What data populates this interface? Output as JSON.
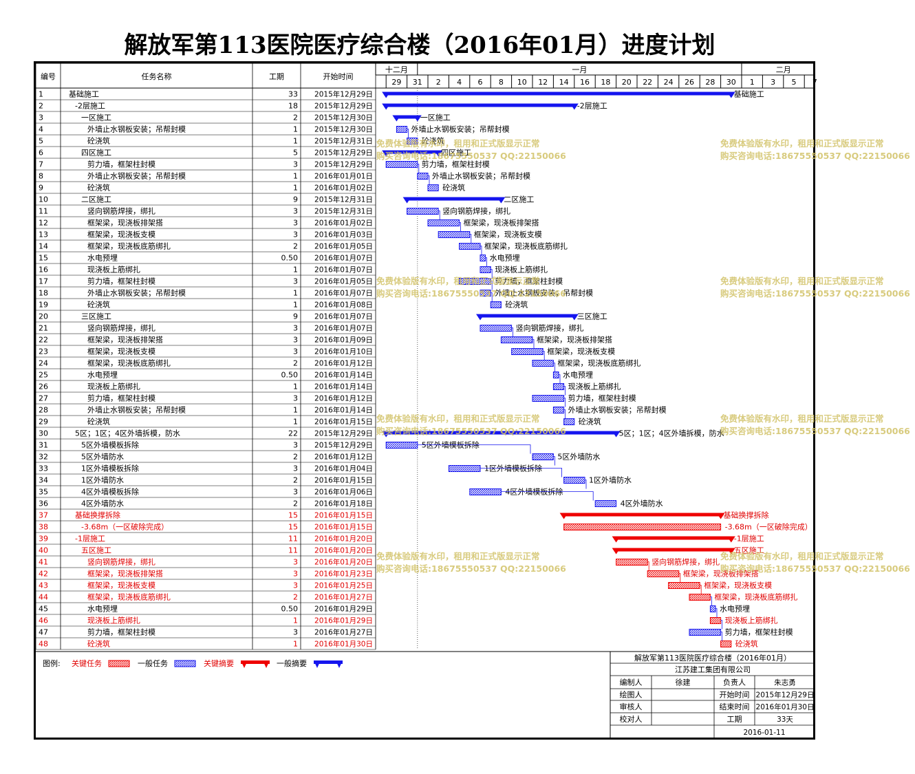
{
  "title": "解放军第113医院医疗综合楼（2016年01月）进度计划",
  "columns": {
    "id": "编号",
    "name": "任务名称",
    "duration": "工期",
    "start": "开始时间"
  },
  "timescale": {
    "months": [
      {
        "label": "十二月",
        "from": "2015-12-28",
        "to": "2015-12-31"
      },
      {
        "label": "一月",
        "from": "2016-01-01",
        "to": "2016-01-31"
      },
      {
        "label": "二月",
        "from": "2016-02-01",
        "to": "2016-02-08"
      }
    ],
    "day_labels": [
      {
        "date": "2015-12-29",
        "label": "29"
      },
      {
        "date": "2015-12-31",
        "label": "31"
      },
      {
        "date": "2016-01-02",
        "label": "2"
      },
      {
        "date": "2016-01-04",
        "label": "4"
      },
      {
        "date": "2016-01-06",
        "label": "6"
      },
      {
        "date": "2016-01-08",
        "label": "8"
      },
      {
        "date": "2016-01-10",
        "label": "10"
      },
      {
        "date": "2016-01-12",
        "label": "12"
      },
      {
        "date": "2016-01-14",
        "label": "14"
      },
      {
        "date": "2016-01-16",
        "label": "16"
      },
      {
        "date": "2016-01-18",
        "label": "18"
      },
      {
        "date": "2016-01-20",
        "label": "20"
      },
      {
        "date": "2016-01-22",
        "label": "22"
      },
      {
        "date": "2016-01-24",
        "label": "24"
      },
      {
        "date": "2016-01-26",
        "label": "26"
      },
      {
        "date": "2016-01-28",
        "label": "28"
      },
      {
        "date": "2016-01-30",
        "label": "30"
      },
      {
        "date": "2016-02-01",
        "label": "1"
      },
      {
        "date": "2016-02-03",
        "label": "3"
      },
      {
        "date": "2016-02-05",
        "label": "5"
      },
      {
        "date": "2016-02-07",
        "label": "7"
      }
    ],
    "range": [
      "2015-12-28",
      "2016-02-09"
    ],
    "status_line": "2015-12-31"
  },
  "colors": {
    "critical": "#ee0000",
    "normal": "#1515ee",
    "text_critical": "#e00000",
    "text_normal": "#000000"
  },
  "chart_data": {
    "type": "gantt",
    "tasks": [
      {
        "id": "1",
        "name": "基础施工",
        "level": 0,
        "summary": true,
        "critical": false,
        "duration": "33",
        "start": "2015年12月29日",
        "s": "2015-12-29",
        "e": "2016-01-30",
        "bar_label": "基础施工"
      },
      {
        "id": "2",
        "name": "-2层施工",
        "level": 1,
        "summary": true,
        "critical": false,
        "duration": "18",
        "start": "2015年12月29日",
        "s": "2015-12-29",
        "e": "2016-01-15",
        "bar_label": "-2层施工"
      },
      {
        "id": "3",
        "name": "一区施工",
        "level": 2,
        "summary": true,
        "critical": false,
        "duration": "2",
        "start": "2015年12月30日",
        "s": "2015-12-30",
        "e": "2015-12-31",
        "bar_label": "一区施工"
      },
      {
        "id": "4",
        "name": "外墙止水钢板安装；吊帮封模",
        "level": 3,
        "summary": false,
        "critical": false,
        "duration": "1",
        "start": "2015年12月30日",
        "s": "2015-12-30",
        "e": "2015-12-30",
        "bar_label": "外墙止水钢板安装；吊帮封模"
      },
      {
        "id": "5",
        "name": "砼浇筑",
        "level": 3,
        "summary": false,
        "critical": false,
        "duration": "1",
        "start": "2015年12月31日",
        "s": "2015-12-31",
        "e": "2015-12-31",
        "bar_label": "砼浇筑"
      },
      {
        "id": "6",
        "name": "四区施工",
        "level": 2,
        "summary": true,
        "critical": false,
        "duration": "5",
        "start": "2015年12月29日",
        "s": "2015-12-29",
        "e": "2016-01-02",
        "bar_label": "四区施工"
      },
      {
        "id": "7",
        "name": "剪力墙，框架柱封模",
        "level": 3,
        "summary": false,
        "critical": false,
        "duration": "3",
        "start": "2015年12月29日",
        "s": "2015-12-29",
        "e": "2015-12-31",
        "bar_label": "剪力墙，框架柱封模"
      },
      {
        "id": "8",
        "name": "外墙止水钢板安装；吊帮封模",
        "level": 3,
        "summary": false,
        "critical": false,
        "duration": "1",
        "start": "2016年01月01日",
        "s": "2016-01-01",
        "e": "2016-01-01",
        "bar_label": "外墙止水钢板安装；吊帮封模"
      },
      {
        "id": "9",
        "name": "砼浇筑",
        "level": 3,
        "summary": false,
        "critical": false,
        "duration": "1",
        "start": "2016年01月02日",
        "s": "2016-01-02",
        "e": "2016-01-02",
        "bar_label": "砼浇筑"
      },
      {
        "id": "10",
        "name": "二区施工",
        "level": 2,
        "summary": true,
        "critical": false,
        "duration": "9",
        "start": "2015年12月31日",
        "s": "2015-12-31",
        "e": "2016-01-08",
        "bar_label": "二区施工"
      },
      {
        "id": "11",
        "name": "竖向钢筋焊接，绑扎",
        "level": 3,
        "summary": false,
        "critical": false,
        "duration": "3",
        "start": "2015年12月31日",
        "s": "2015-12-31",
        "e": "2016-01-02",
        "bar_label": "竖向钢筋焊接，绑扎"
      },
      {
        "id": "12",
        "name": "框架梁，现浇板排架搭",
        "level": 3,
        "summary": false,
        "critical": false,
        "duration": "3",
        "start": "2016年01月02日",
        "s": "2016-01-02",
        "e": "2016-01-04",
        "bar_label": "框架梁，现浇板排架搭"
      },
      {
        "id": "13",
        "name": "框架梁，现浇板支模",
        "level": 3,
        "summary": false,
        "critical": false,
        "duration": "3",
        "start": "2016年01月03日",
        "s": "2016-01-03",
        "e": "2016-01-05",
        "bar_label": "框架梁，现浇板支模"
      },
      {
        "id": "14",
        "name": "框架梁，现浇板底筋绑扎",
        "level": 3,
        "summary": false,
        "critical": false,
        "duration": "2",
        "start": "2016年01月05日",
        "s": "2016-01-05",
        "e": "2016-01-06",
        "bar_label": "框架梁，现浇板底筋绑扎"
      },
      {
        "id": "15",
        "name": "水电预埋",
        "level": 3,
        "summary": false,
        "critical": false,
        "duration": "0.50",
        "start": "2016年01月07日",
        "s": "2016-01-07",
        "e": "2016-01-07",
        "bar_label": "水电预埋",
        "half": true
      },
      {
        "id": "16",
        "name": "现浇板上筋绑扎",
        "level": 3,
        "summary": false,
        "critical": false,
        "duration": "1",
        "start": "2016年01月07日",
        "s": "2016-01-07",
        "e": "2016-01-07",
        "bar_label": "现浇板上筋绑扎"
      },
      {
        "id": "17",
        "name": "剪力墙，框架柱封模",
        "level": 3,
        "summary": false,
        "critical": false,
        "duration": "3",
        "start": "2016年01月05日",
        "s": "2016-01-05",
        "e": "2016-01-07",
        "bar_label": "剪力墙，框架柱封模"
      },
      {
        "id": "18",
        "name": "外墙止水钢板安装；吊帮封模",
        "level": 3,
        "summary": false,
        "critical": false,
        "duration": "1",
        "start": "2016年01月07日",
        "s": "2016-01-07",
        "e": "2016-01-07",
        "bar_label": "外墙止水钢板安装；吊帮封模"
      },
      {
        "id": "19",
        "name": "砼浇筑",
        "level": 3,
        "summary": false,
        "critical": false,
        "duration": "1",
        "start": "2016年01月08日",
        "s": "2016-01-08",
        "e": "2016-01-08",
        "bar_label": "砼浇筑"
      },
      {
        "id": "20",
        "name": "三区施工",
        "level": 2,
        "summary": true,
        "critical": false,
        "duration": "9",
        "start": "2016年01月07日",
        "s": "2016-01-07",
        "e": "2016-01-15",
        "bar_label": "三区施工"
      },
      {
        "id": "21",
        "name": "竖向钢筋焊接，绑扎",
        "level": 3,
        "summary": false,
        "critical": false,
        "duration": "3",
        "start": "2016年01月07日",
        "s": "2016-01-07",
        "e": "2016-01-09",
        "bar_label": "竖向钢筋焊接，绑扎"
      },
      {
        "id": "22",
        "name": "框架梁，现浇板排架搭",
        "level": 3,
        "summary": false,
        "critical": false,
        "duration": "3",
        "start": "2016年01月09日",
        "s": "2016-01-09",
        "e": "2016-01-11",
        "bar_label": "框架梁，现浇板排架搭"
      },
      {
        "id": "23",
        "name": "框架梁，现浇板支模",
        "level": 3,
        "summary": false,
        "critical": false,
        "duration": "3",
        "start": "2016年01月10日",
        "s": "2016-01-10",
        "e": "2016-01-12",
        "bar_label": "框架梁，现浇板支模"
      },
      {
        "id": "24",
        "name": "框架梁，现浇板底筋绑扎",
        "level": 3,
        "summary": false,
        "critical": false,
        "duration": "2",
        "start": "2016年01月12日",
        "s": "2016-01-12",
        "e": "2016-01-13",
        "bar_label": "框架梁，现浇板底筋绑扎"
      },
      {
        "id": "25",
        "name": "水电预埋",
        "level": 3,
        "summary": false,
        "critical": false,
        "duration": "0.50",
        "start": "2016年01月14日",
        "s": "2016-01-14",
        "e": "2016-01-14",
        "bar_label": "水电预埋",
        "half": true
      },
      {
        "id": "26",
        "name": "现浇板上筋绑扎",
        "level": 3,
        "summary": false,
        "critical": false,
        "duration": "1",
        "start": "2016年01月14日",
        "s": "2016-01-14",
        "e": "2016-01-14",
        "bar_label": "现浇板上筋绑扎"
      },
      {
        "id": "27",
        "name": "剪力墙，框架柱封模",
        "level": 3,
        "summary": false,
        "critical": false,
        "duration": "3",
        "start": "2016年01月12日",
        "s": "2016-01-12",
        "e": "2016-01-14",
        "bar_label": "剪力墙，框架柱封模"
      },
      {
        "id": "28",
        "name": "外墙止水钢板安装；吊帮封模",
        "level": 3,
        "summary": false,
        "critical": false,
        "duration": "1",
        "start": "2016年01月14日",
        "s": "2016-01-14",
        "e": "2016-01-14",
        "bar_label": "外墙止水钢板安装；吊帮封模"
      },
      {
        "id": "29",
        "name": "砼浇筑",
        "level": 3,
        "summary": false,
        "critical": false,
        "duration": "1",
        "start": "2016年01月15日",
        "s": "2016-01-15",
        "e": "2016-01-15",
        "bar_label": "砼浇筑"
      },
      {
        "id": "30",
        "name": "5区；1区；4区外墙拆模，防水",
        "level": 1,
        "summary": true,
        "critical": false,
        "duration": "22",
        "start": "2015年12月29日",
        "s": "2015-12-29",
        "e": "2016-01-19",
        "bar_label": "5区；1区；4区外墙拆模，防水"
      },
      {
        "id": "31",
        "name": "5区外墙模板拆除",
        "level": 2,
        "summary": false,
        "critical": false,
        "duration": "3",
        "start": "2015年12月29日",
        "s": "2015-12-29",
        "e": "2015-12-31",
        "bar_label": "5区外墙模板拆除"
      },
      {
        "id": "32",
        "name": "5区外墙防水",
        "level": 2,
        "summary": false,
        "critical": false,
        "duration": "2",
        "start": "2016年01月12日",
        "s": "2016-01-12",
        "e": "2016-01-13",
        "bar_label": "5区外墙防水"
      },
      {
        "id": "33",
        "name": "1区外墙模板拆除",
        "level": 2,
        "summary": false,
        "critical": false,
        "duration": "3",
        "start": "2016年01月04日",
        "s": "2016-01-04",
        "e": "2016-01-06",
        "bar_label": "1区外墙模板拆除"
      },
      {
        "id": "34",
        "name": "1区外墙防水",
        "level": 2,
        "summary": false,
        "critical": false,
        "duration": "2",
        "start": "2016年01月15日",
        "s": "2016-01-15",
        "e": "2016-01-16",
        "bar_label": "1区外墙防水"
      },
      {
        "id": "35",
        "name": "4区外墙模板拆除",
        "level": 2,
        "summary": false,
        "critical": false,
        "duration": "3",
        "start": "2016年01月06日",
        "s": "2016-01-06",
        "e": "2016-01-08",
        "bar_label": "4区外墙模板拆除"
      },
      {
        "id": "36",
        "name": "4区外墙防水",
        "level": 2,
        "summary": false,
        "critical": false,
        "duration": "2",
        "start": "2016年01月18日",
        "s": "2016-01-18",
        "e": "2016-01-19",
        "bar_label": "4区外墙防水"
      },
      {
        "id": "37",
        "name": "基础换撑拆除",
        "level": 1,
        "summary": true,
        "critical": true,
        "duration": "15",
        "start": "2016年01月15日",
        "s": "2016-01-15",
        "e": "2016-01-29",
        "bar_label": "基础换撑拆除"
      },
      {
        "id": "38",
        "name": "-3.68m（一区破除完成）",
        "level": 2,
        "summary": false,
        "critical": true,
        "duration": "15",
        "start": "2016年01月15日",
        "s": "2016-01-15",
        "e": "2016-01-29",
        "bar_label": "-3.68m（一区破除完成）"
      },
      {
        "id": "39",
        "name": "-1层施工",
        "level": 1,
        "summary": true,
        "critical": true,
        "duration": "11",
        "start": "2016年01月20日",
        "s": "2016-01-20",
        "e": "2016-01-30",
        "bar_label": "-1层施工"
      },
      {
        "id": "40",
        "name": "五区施工",
        "level": 2,
        "summary": true,
        "critical": true,
        "duration": "11",
        "start": "2016年01月20日",
        "s": "2016-01-20",
        "e": "2016-01-30",
        "bar_label": "五区施工"
      },
      {
        "id": "41",
        "name": "竖向钢筋焊接，绑扎",
        "level": 3,
        "summary": false,
        "critical": true,
        "duration": "3",
        "start": "2016年01月20日",
        "s": "2016-01-20",
        "e": "2016-01-22",
        "bar_label": "竖向钢筋焊接，绑扎"
      },
      {
        "id": "42",
        "name": "框架梁，现浇板排架搭",
        "level": 3,
        "summary": false,
        "critical": true,
        "duration": "3",
        "start": "2016年01月23日",
        "s": "2016-01-23",
        "e": "2016-01-25",
        "bar_label": "框架梁，现浇板排架搭"
      },
      {
        "id": "43",
        "name": "框架梁，现浇板支模",
        "level": 3,
        "summary": false,
        "critical": true,
        "duration": "3",
        "start": "2016年01月25日",
        "s": "2016-01-25",
        "e": "2016-01-27",
        "bar_label": "框架梁，现浇板支模"
      },
      {
        "id": "44",
        "name": "框架梁，现浇板底筋绑扎",
        "level": 3,
        "summary": false,
        "critical": true,
        "duration": "2",
        "start": "2016年01月27日",
        "s": "2016-01-27",
        "e": "2016-01-28",
        "bar_label": "框架梁，现浇板底筋绑扎"
      },
      {
        "id": "45",
        "name": "水电预埋",
        "level": 3,
        "summary": false,
        "critical": false,
        "duration": "0.50",
        "start": "2016年01月29日",
        "s": "2016-01-29",
        "e": "2016-01-29",
        "bar_label": "水电预埋",
        "half": true
      },
      {
        "id": "46",
        "name": "现浇板上筋绑扎",
        "level": 3,
        "summary": false,
        "critical": true,
        "duration": "1",
        "start": "2016年01月29日",
        "s": "2016-01-29",
        "e": "2016-01-29",
        "bar_label": "现浇板上筋绑扎"
      },
      {
        "id": "47",
        "name": "剪力墙，框架柱封模",
        "level": 3,
        "summary": false,
        "critical": false,
        "duration": "3",
        "start": "2016年01月27日",
        "s": "2016-01-27",
        "e": "2016-01-29",
        "bar_label": "剪力墙，框架柱封模"
      },
      {
        "id": "48",
        "name": "砼浇筑",
        "level": 3,
        "summary": false,
        "critical": true,
        "duration": "1",
        "start": "2016年01月30日",
        "s": "2016-01-30",
        "e": "2016-01-30",
        "bar_label": "砼浇筑"
      }
    ]
  },
  "legend": {
    "prefix": "图例:",
    "items": [
      {
        "label": "关键任务",
        "kind": "bar",
        "critical": true
      },
      {
        "label": "一般任务",
        "kind": "bar",
        "critical": false
      },
      {
        "label": "关键摘要",
        "kind": "summary",
        "critical": true
      },
      {
        "label": "一般摘要",
        "kind": "summary",
        "critical": false
      }
    ]
  },
  "info_box": {
    "title": "解放军第113医院医疗综合楼（2016年01月）",
    "company": "江苏建工集团有限公司",
    "rows": [
      [
        "编制人",
        "徐建",
        "负责人",
        "朱志勇"
      ],
      [
        "绘图人",
        "",
        "开始时间",
        "2015年12月29日"
      ],
      [
        "审核人",
        "",
        "结束时间",
        "2016年01月30日"
      ],
      [
        "校对人",
        "",
        "工期",
        "33天"
      ]
    ],
    "footer_date": "2016-01-11"
  },
  "watermark": {
    "line1": "免费体验版有水印，租用和正式版显示正常",
    "line2": "购买咨询电话:18675550537 QQ:22150066"
  }
}
